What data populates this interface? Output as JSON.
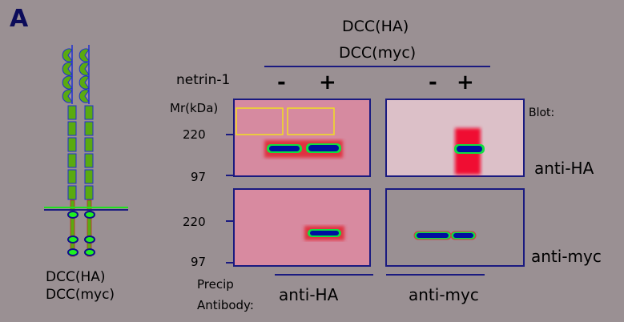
{
  "panel_label": "A",
  "construct_labels": [
    "DCC(HA)",
    "DCC(myc)"
  ],
  "header": {
    "top": "DCC(HA)",
    "bottom": "DCC(myc)"
  },
  "treatment": {
    "label": "netrin-1",
    "lanes": [
      "-",
      "+",
      "-",
      "+"
    ]
  },
  "mr_label": "Mr(kDa)",
  "markers": {
    "top": [
      "220",
      "97"
    ],
    "bottom": [
      "220",
      "97"
    ]
  },
  "blot_label": "Blot:",
  "blots": [
    "anti-HA",
    "anti-myc"
  ],
  "precip": {
    "line1": "Precip",
    "line2": "Antibody:",
    "groups": [
      "anti-HA",
      "anti-myc"
    ]
  },
  "colors": {
    "background": "#9a9093",
    "membrane": "#d88aa0",
    "band": "#0010a0",
    "domain": "#5aaa10",
    "text": "#0c0c5a"
  }
}
